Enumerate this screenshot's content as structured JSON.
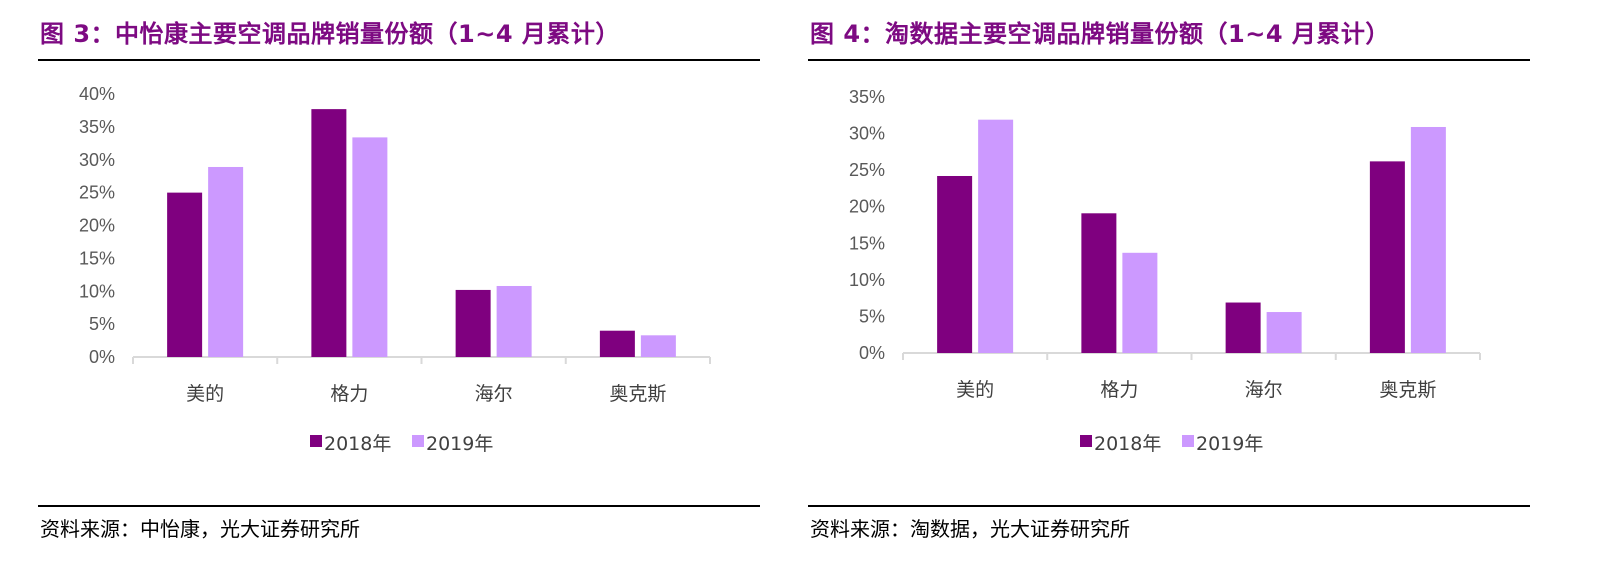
{
  "colors": {
    "title": "#7d0a82",
    "series_2018": "#7f007f",
    "series_2019": "#cc99ff",
    "axis": "#d9d9d9"
  },
  "charts": [
    {
      "title": "图 3：中怡康主要空调品牌销量份额（1~4 月累计）",
      "source": "资料来源：中怡康，光大证券研究所"
    },
    {
      "title": "图 4：淘数据主要空调品牌销量份额（1~4 月累计）",
      "source": "资料来源：淘数据，光大证券研究所"
    }
  ],
  "chart_data": [
    {
      "type": "bar",
      "title": "图 3：中怡康主要空调品牌销量份额（1~4 月累计）",
      "categories": [
        "美的",
        "格力",
        "海尔",
        "奥克斯"
      ],
      "series": [
        {
          "name": "2018年",
          "values": [
            25.0,
            37.7,
            10.2,
            4.0
          ]
        },
        {
          "name": "2019年",
          "values": [
            28.9,
            33.4,
            10.8,
            3.3
          ]
        }
      ],
      "ylim": [
        0,
        40
      ],
      "yticks": [
        "0%",
        "5%",
        "10%",
        "15%",
        "20%",
        "25%",
        "30%",
        "35%",
        "40%"
      ],
      "xlabel": "",
      "ylabel": "",
      "grid": false,
      "legend": "bottom-center"
    },
    {
      "type": "bar",
      "title": "图 4：淘数据主要空调品牌销量份额（1~4 月累计）",
      "categories": [
        "美的",
        "格力",
        "海尔",
        "奥克斯"
      ],
      "series": [
        {
          "name": "2018年",
          "values": [
            24.2,
            19.1,
            6.9,
            26.2
          ]
        },
        {
          "name": "2019年",
          "values": [
            31.9,
            13.7,
            5.6,
            30.9
          ]
        }
      ],
      "ylim": [
        0,
        35
      ],
      "yticks": [
        "0%",
        "5%",
        "10%",
        "15%",
        "20%",
        "25%",
        "30%",
        "35%"
      ],
      "xlabel": "",
      "ylabel": "",
      "grid": false,
      "legend": "bottom-center"
    }
  ]
}
